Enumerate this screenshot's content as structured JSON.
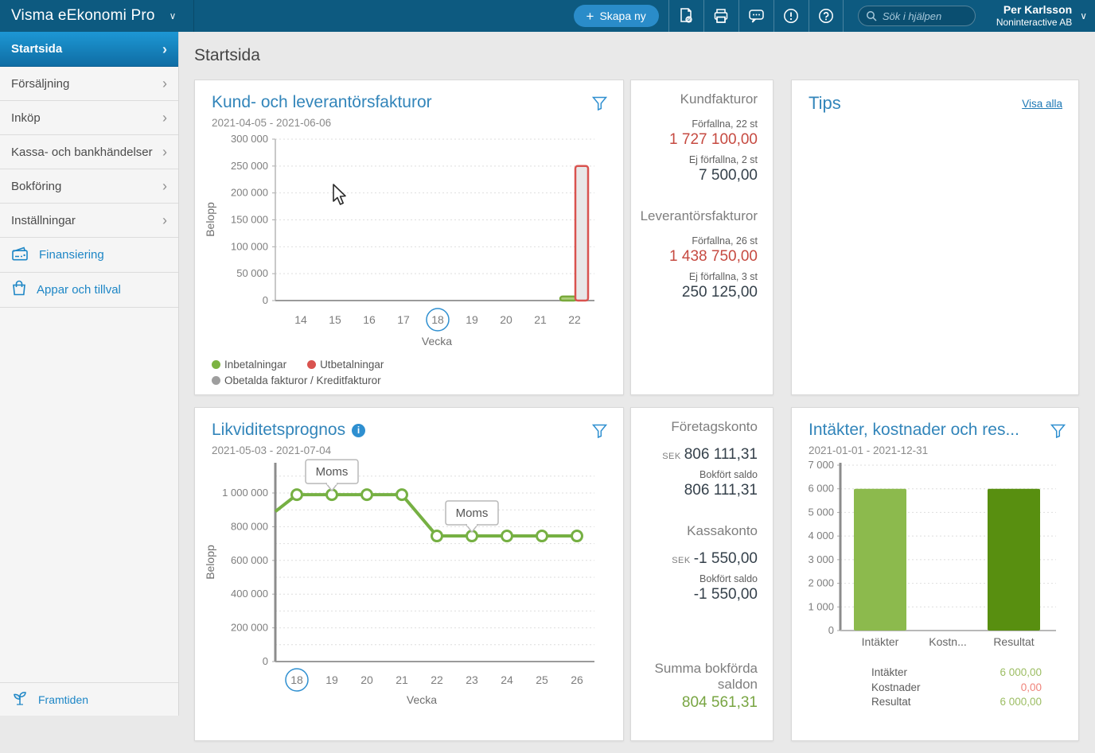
{
  "topbar": {
    "app_title": "Visma eEkonomi Pro",
    "create_label": "Skapa ny",
    "create_plus": "+",
    "search_placeholder": "Sök i hjälpen",
    "user_name": "Per Karlsson",
    "user_company": "Noninteractive AB"
  },
  "sidebar": {
    "items": [
      {
        "label": "Startsida",
        "active": true
      },
      {
        "label": "Försäljning"
      },
      {
        "label": "Inköp"
      },
      {
        "label": "Kassa- och bankhändelser"
      },
      {
        "label": "Bokföring"
      },
      {
        "label": "Inställningar"
      }
    ],
    "links": [
      {
        "label": "Finansiering"
      },
      {
        "label": "Appar och tillval"
      }
    ],
    "footer_label": "Framtiden"
  },
  "page": {
    "title": "Startsida"
  },
  "invoice_stats": {
    "customer": {
      "title": "Kundfakturor",
      "overdue_label": "Förfallna, 22 st",
      "overdue_value": "1 727 100,00",
      "notdue_label": "Ej förfallna, 2 st",
      "notdue_value": "7 500,00"
    },
    "supplier": {
      "title": "Leverantörsfakturor",
      "overdue_label": "Förfallna, 26 st",
      "overdue_value": "1 438 750,00",
      "notdue_label": "Ej förfallna, 3 st",
      "notdue_value": "250 125,00"
    }
  },
  "tips": {
    "title": "Tips",
    "link_label": "Visa alla"
  },
  "accounts": {
    "company": {
      "title": "Företagskonto",
      "currency": "SEK",
      "amount": "806 111,31",
      "booked_label": "Bokfört saldo",
      "booked_value": "806 111,31"
    },
    "cash": {
      "title": "Kassakonto",
      "currency": "SEK",
      "amount": "-1 550,00",
      "booked_label": "Bokfört saldo",
      "booked_value": "-1 550,00"
    },
    "total": {
      "label_line1": "Summa bokförda",
      "label_line2": "saldon",
      "value": "804 561,31",
      "color": "#78a542"
    }
  },
  "chart_data": [
    {
      "type": "bar",
      "title": "Kund- och leverantörsfakturor",
      "period": "2021-04-05 - 2021-06-06",
      "xlabel": "Vecka",
      "ylabel": "Belopp",
      "categories": [
        "14",
        "15",
        "16",
        "17",
        "18",
        "19",
        "20",
        "21",
        "22"
      ],
      "highlighted_category": "18",
      "ylim": [
        0,
        300000
      ],
      "ytick_labels": [
        "0",
        "50 000",
        "100 000",
        "150 000",
        "200 000",
        "250 000",
        "300 000"
      ],
      "grid": true,
      "legend": [
        {
          "label": "Inbetalningar",
          "color": "#7cb342"
        },
        {
          "label": "Utbetalningar",
          "color": "#d9534f"
        },
        {
          "label": "Obetalda fakturor / Kreditfakturor",
          "color": "#9e9e9e"
        }
      ],
      "bars": [
        {
          "category": "22",
          "series": "Inbetalningar",
          "value": 7500,
          "fill": "#aecf7d",
          "stroke": "#79a93b",
          "dx": -18,
          "w": 20
        },
        {
          "category": "22",
          "series": "Obetalda fakturor / Kreditfakturor",
          "value": 250125,
          "fill": "#e8e8e8",
          "stroke": "#d9534f",
          "dx": 1,
          "w": 16
        }
      ]
    },
    {
      "type": "line",
      "title": "Likviditetsprognos",
      "period": "2021-05-03 - 2021-07-04",
      "xlabel": "Vecka",
      "ylabel": "Belopp",
      "categories": [
        "18",
        "19",
        "20",
        "21",
        "22",
        "23",
        "24",
        "25",
        "26"
      ],
      "highlighted_category": "18",
      "ylim": [
        0,
        1160000
      ],
      "ytick_values": [
        0,
        200000,
        400000,
        600000,
        800000,
        1000000
      ],
      "ytick_labels": [
        "0",
        "200 000",
        "400 000",
        "600 000",
        "800 000",
        "1 000 000"
      ],
      "gridline_step": 100000,
      "grid": true,
      "line_color": "#76b043",
      "start_value": 890000,
      "values": [
        990000,
        990000,
        990000,
        990000,
        745000,
        745000,
        745000,
        745000,
        745000
      ],
      "annotations": [
        {
          "category": "19",
          "label": "Moms"
        },
        {
          "category": "23",
          "label": "Moms"
        }
      ]
    },
    {
      "type": "bar",
      "title": "Intäkter, kostnader och res...",
      "period": "2021-01-01 - 2021-12-31",
      "categories": [
        "Intäkter",
        "Kostn...",
        "Resultat"
      ],
      "values": [
        6000,
        0,
        6000
      ],
      "colors": [
        "#8cba4d",
        "#8cba4d",
        "#588f10"
      ],
      "ylim": [
        0,
        7000
      ],
      "ytick_labels": [
        "0",
        "1 000",
        "2 000",
        "3 000",
        "4 000",
        "5 000",
        "6 000",
        "7 000"
      ],
      "grid": true,
      "table": [
        {
          "label": "Intäkter",
          "value": "6 000,00",
          "color": "#9cbd63"
        },
        {
          "label": "Kostnader",
          "value": "0,00",
          "color": "#ef837a"
        },
        {
          "label": "Resultat",
          "value": "6 000,00",
          "color": "#9cbd63"
        }
      ]
    }
  ]
}
